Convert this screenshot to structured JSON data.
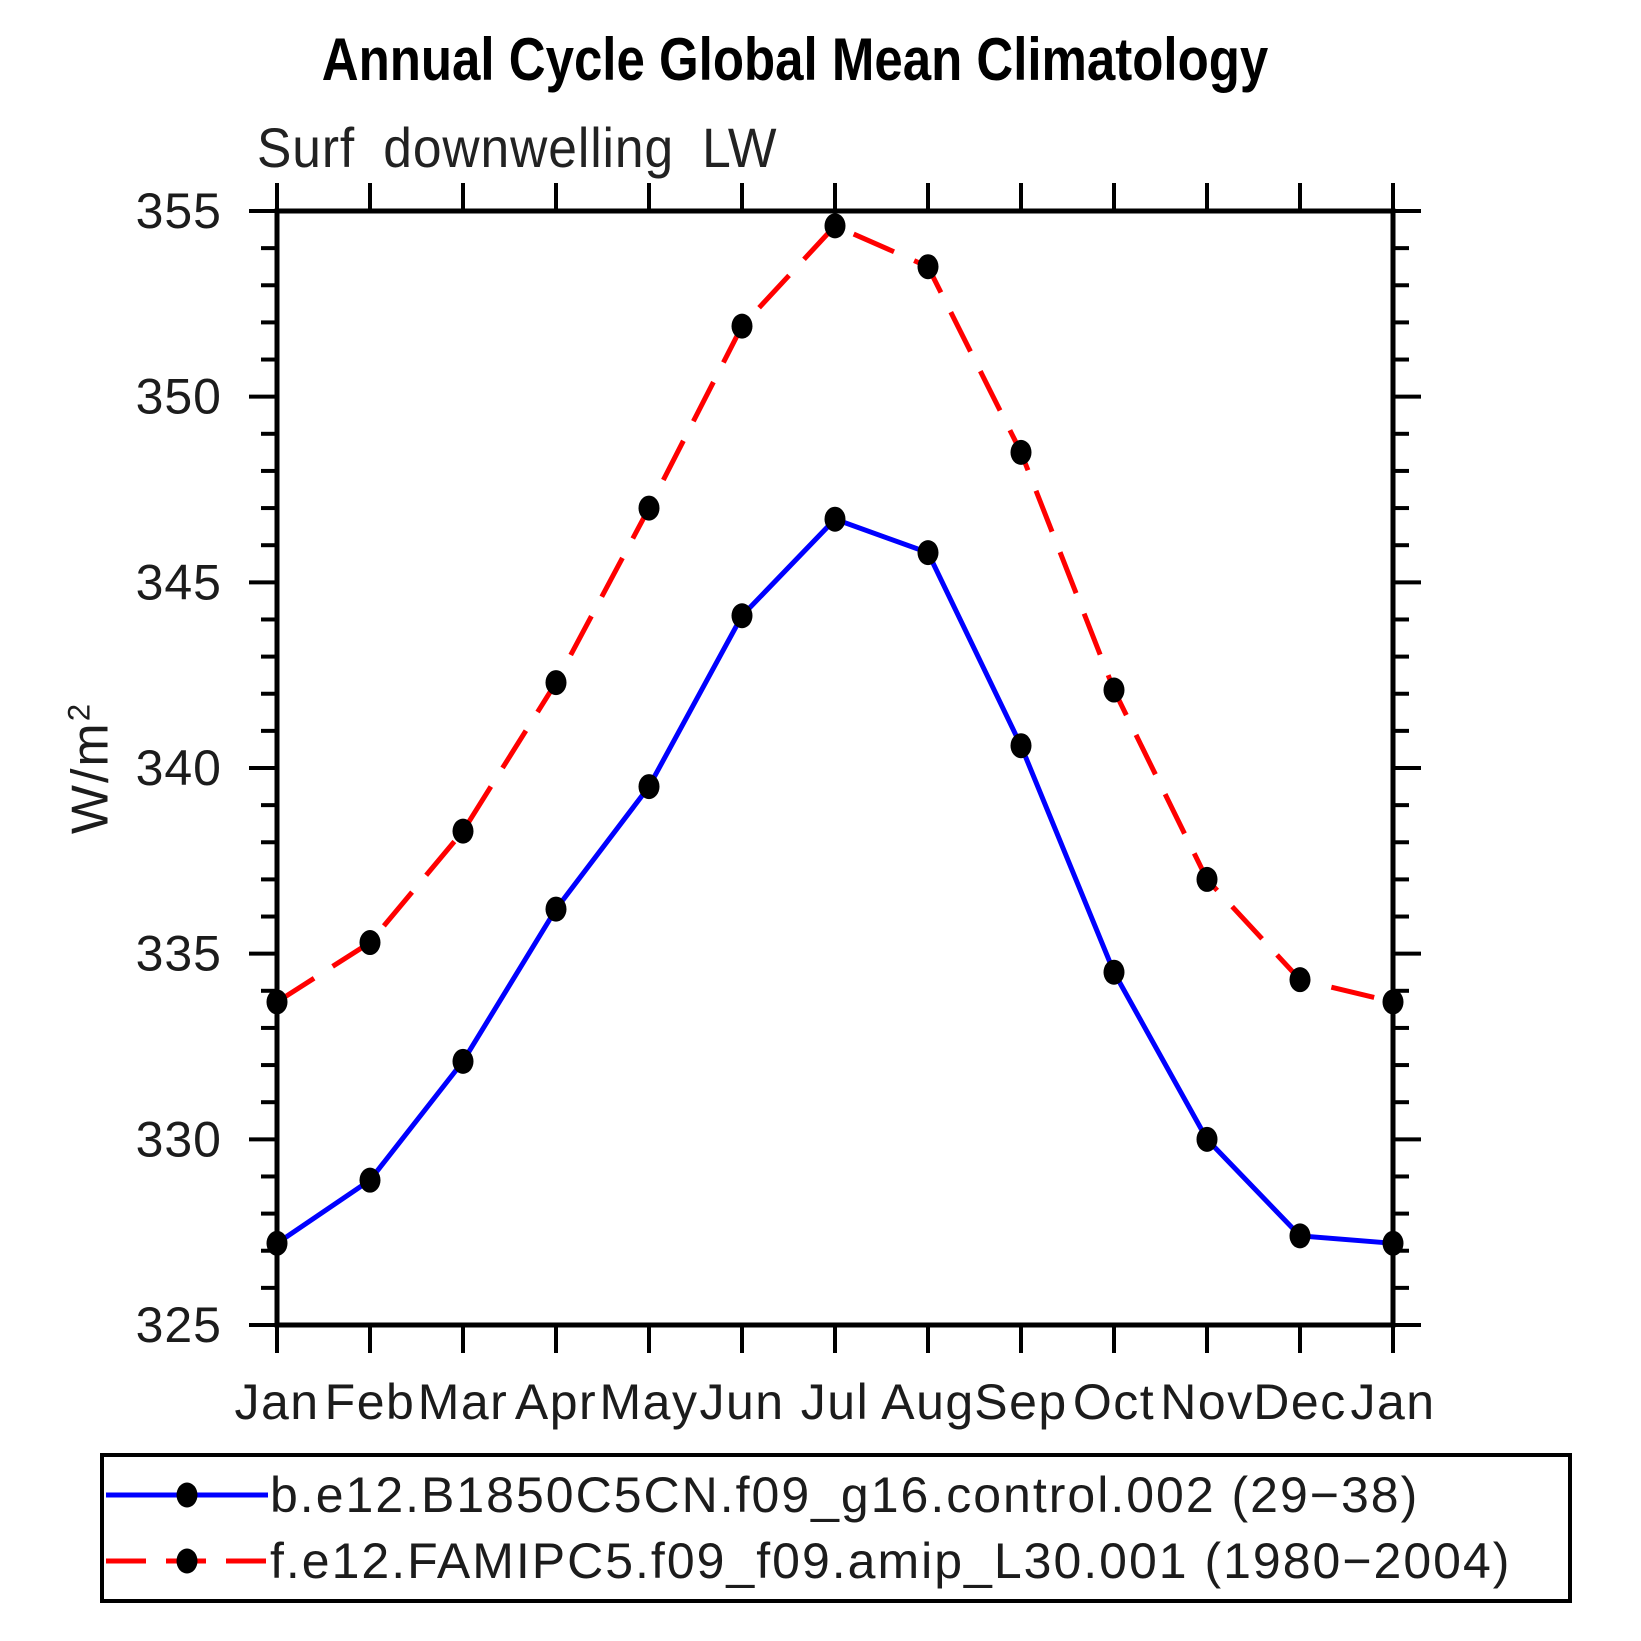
{
  "chart": {
    "title": "Annual Cycle Global Mean Climatology",
    "subtitle": "Surf downwelling LW",
    "ylabel_base": "W/m",
    "ylabel_sup": "2"
  },
  "legend": {
    "items": [
      {
        "label": "b.e12.B1850C5CN.f09_g16.control.002 (29−38)",
        "color": "#0000FF",
        "style": "solid"
      },
      {
        "label": "f.e12.FAMIPC5.f09_f09.amip_L30.001 (1980−2004)",
        "color": "#FF0000",
        "style": "dashed"
      }
    ]
  },
  "chart_data": {
    "type": "line",
    "title": "Annual Cycle Global Mean Climatology",
    "subtitle": "Surf downwelling LW",
    "xlabel": "",
    "ylabel": "W/m²",
    "categories": [
      "Jan",
      "Feb",
      "Mar",
      "Apr",
      "May",
      "Jun",
      "Jul",
      "Aug",
      "Sep",
      "Oct",
      "Nov",
      "Dec",
      "Jan"
    ],
    "ylim": [
      325,
      355
    ],
    "ytick_major": 5,
    "ytick_minor": 1,
    "grid": false,
    "legend_position": "bottom",
    "marker": "filled-circle",
    "marker_color": "#000000",
    "series": [
      {
        "name": "b.e12.B1850C5CN.f09_g16.control.002 (29−38)",
        "color": "#0000FF",
        "line_style": "solid",
        "values": [
          327.2,
          328.9,
          332.1,
          336.2,
          339.5,
          344.1,
          346.7,
          345.8,
          340.6,
          334.5,
          330.0,
          327.4,
          327.2
        ]
      },
      {
        "name": "f.e12.FAMIPC5.f09_f09.amip_L30.001 (1980−2004)",
        "color": "#FF0000",
        "line_style": "dashed",
        "values": [
          333.7,
          335.3,
          338.3,
          342.3,
          347.0,
          351.9,
          354.6,
          353.5,
          348.5,
          342.1,
          337.0,
          334.3,
          333.7
        ]
      }
    ]
  }
}
